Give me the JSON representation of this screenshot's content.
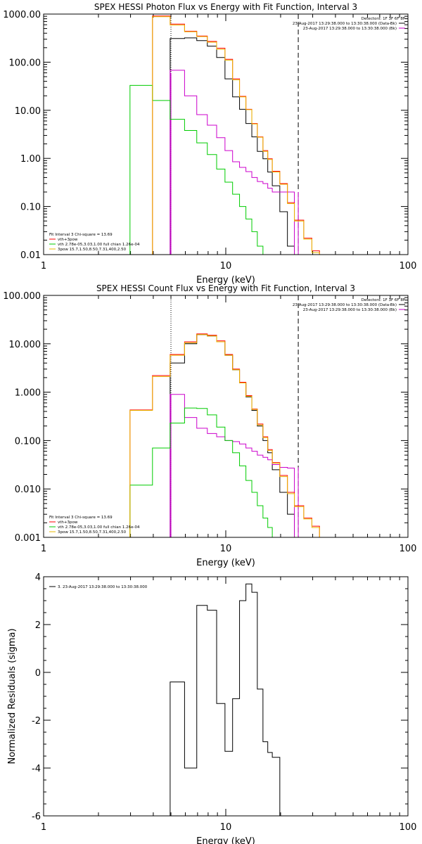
{
  "chart_data": [
    {
      "type": "line",
      "title": "SPEX HESSI Photon Flux vs Energy with Fit Function, Interval 3",
      "xlabel": "Energy (keV)",
      "ylabel": "",
      "xscale": "log",
      "yscale": "log",
      "xlim": [
        1,
        100
      ],
      "ylim": [
        0.01,
        1000
      ],
      "xticks": [
        1,
        10,
        100
      ],
      "xtick_labels": [
        "1",
        "10",
        "100"
      ],
      "yticks": [
        0.01,
        0.1,
        1,
        10,
        100,
        1000
      ],
      "ytick_labels": [
        "0.01",
        "0.10",
        "1.00",
        "10.00",
        "100.00",
        "1000.00"
      ],
      "vlines": [
        {
          "x": 5,
          "style": "dotted",
          "color": "#000000"
        },
        {
          "x": 5,
          "style": "solid",
          "color": "#cc00cc"
        },
        {
          "x": 25,
          "style": "dashed",
          "color": "#000000"
        },
        {
          "x": 25,
          "style": "solid",
          "color": "#cc00cc"
        }
      ],
      "legend_tr": {
        "lines": [
          "Detectors: 1F 3F 6F 8F",
          "23-Aug-2017 13:29:38.000 to 13:30:38.000 (Data-Bk)",
          "23-Aug-2017 13:29:38.000 to 13:30:38.000 (Bk)"
        ],
        "colors": [
          "",
          "#000000",
          "#cc00cc"
        ]
      },
      "legend_bl": {
        "lines": [
          "Fit Interval 3   Chi-square = 13.69",
          "vth+3pow",
          "vth 2.78e-05,3.03,1.00  full chian 1.26e-04",
          "3pow 15.7,1.50,8.50,7.31,400,2.50"
        ],
        "colors": [
          "",
          "#ff0000",
          "#00cc00",
          "#e8b800"
        ]
      },
      "edges": [
        2.98,
        3.96,
        4.95,
        5.94,
        6.93,
        7.92,
        8.91,
        9.9,
        10.9,
        11.9,
        12.9,
        13.9,
        14.9,
        16.0,
        17.0,
        18.0,
        19.8,
        21.8,
        23.8,
        26.8,
        29.7,
        32.7,
        35.6
      ],
      "series": [
        {
          "key": "data",
          "color": "#000000",
          "values": [
            null,
            null,
            310,
            320,
            280,
            215,
            125,
            45,
            19,
            10.5,
            5.3,
            2.8,
            1.4,
            0.98,
            0.52,
            0.27,
            0.078,
            0.015,
            null,
            null,
            null,
            null
          ]
        },
        {
          "key": "bk",
          "color": "#cc00cc",
          "values": [
            null,
            null,
            68,
            20,
            8.1,
            4.9,
            2.7,
            1.45,
            0.85,
            0.65,
            0.53,
            0.4,
            0.33,
            0.3,
            0.24,
            0.2,
            0.2,
            0.2,
            null,
            null,
            null,
            null
          ]
        },
        {
          "key": "total",
          "color": "#ff0000",
          "values": [
            null,
            910,
            620,
            440,
            350,
            270,
            195,
            115,
            45,
            19.5,
            10.5,
            5.3,
            2.8,
            1.45,
            0.98,
            0.54,
            0.3,
            0.12,
            0.052,
            0.022,
            0.012,
            null
          ]
        },
        {
          "key": "thermal",
          "color": "#00cc00",
          "values": [
            33,
            16,
            6.5,
            3.8,
            2.1,
            1.2,
            0.6,
            0.32,
            0.18,
            0.1,
            0.055,
            0.03,
            0.015,
            null,
            null,
            null,
            null,
            null,
            null,
            null,
            null,
            null
          ]
        },
        {
          "key": "powerlaw",
          "color": "#e8b800",
          "values": [
            null,
            880,
            590,
            430,
            340,
            260,
            185,
            110,
            43,
            19,
            10.3,
            5.2,
            2.75,
            1.4,
            0.95,
            0.52,
            0.29,
            0.115,
            0.05,
            0.021,
            0.011,
            null
          ]
        }
      ]
    },
    {
      "type": "line",
      "title": "SPEX HESSI Count Flux vs Energy with Fit Function, Interval 3",
      "xlabel": "Energy (keV)",
      "ylabel": "",
      "xscale": "log",
      "yscale": "log",
      "xlim": [
        1,
        100
      ],
      "ylim": [
        0.001,
        100
      ],
      "xticks": [
        1,
        10,
        100
      ],
      "xtick_labels": [
        "1",
        "10",
        "100"
      ],
      "yticks": [
        0.001,
        0.01,
        0.1,
        1,
        10,
        100
      ],
      "ytick_labels": [
        "0.001",
        "0.010",
        "0.100",
        "1.000",
        "10.000",
        "100.000"
      ],
      "vlines": [
        {
          "x": 5,
          "style": "dotted",
          "color": "#000000"
        },
        {
          "x": 5,
          "style": "solid",
          "color": "#cc00cc"
        },
        {
          "x": 25,
          "style": "dashed",
          "color": "#000000"
        },
        {
          "x": 25,
          "style": "solid",
          "color": "#cc00cc"
        }
      ],
      "legend_tr": {
        "lines": [
          "Detectors: 1F 3F 6F 8F",
          "23-Aug-2017 13:29:38.000 to 13:30:38.000 (Data-Bk)",
          "23-Aug-2017 13:29:38.000 to 13:30:38.000 (Bk)"
        ],
        "colors": [
          "",
          "#000000",
          "#cc00cc"
        ]
      },
      "legend_bl": {
        "lines": [
          "Fit Interval 3   Chi-square = 13.69",
          "vth+3pow",
          "vth 2.78e-05,3.03,1.00  full chian 1.26e-04",
          "3pow 15.7,1.50,8.50,7.31,400,2.50"
        ],
        "colors": [
          "",
          "#ff0000",
          "#00cc00",
          "#e8b800"
        ]
      },
      "edges": [
        2.98,
        3.96,
        4.95,
        5.94,
        6.93,
        7.92,
        8.91,
        9.9,
        10.9,
        11.9,
        12.9,
        13.9,
        14.9,
        16.0,
        17.0,
        18.0,
        19.8,
        21.8,
        23.8,
        26.8,
        29.7,
        32.7,
        35.6,
        38.6
      ],
      "series": [
        {
          "key": "data",
          "color": "#000000",
          "values": [
            null,
            null,
            4,
            10,
            15.5,
            14.5,
            11,
            5.8,
            2.9,
            1.55,
            0.8,
            0.42,
            0.2,
            0.1,
            0.056,
            0.025,
            0.0085,
            0.003,
            null,
            null,
            null,
            null,
            null
          ]
        },
        {
          "key": "bk",
          "color": "#cc00cc",
          "values": [
            null,
            null,
            0.9,
            0.3,
            0.18,
            0.14,
            0.12,
            0.1,
            0.095,
            0.085,
            0.07,
            0.06,
            0.05,
            0.045,
            0.04,
            0.032,
            0.028,
            0.027,
            null,
            null,
            null,
            null,
            null
          ]
        },
        {
          "key": "total",
          "color": "#ff0000",
          "values": [
            0.43,
            2.2,
            6,
            11,
            16,
            15,
            11.5,
            6,
            3,
            1.6,
            0.85,
            0.45,
            0.22,
            0.12,
            0.065,
            0.035,
            0.019,
            0.0085,
            0.0045,
            0.0025,
            0.0017,
            0.001,
            null
          ]
        },
        {
          "key": "thermal",
          "color": "#00cc00",
          "values": [
            0.012,
            0.07,
            0.23,
            0.47,
            0.46,
            0.34,
            0.19,
            0.1,
            0.056,
            0.03,
            0.015,
            0.0085,
            0.0045,
            0.0025,
            0.0016,
            0.001,
            null,
            null,
            null,
            null,
            null,
            null,
            null
          ]
        },
        {
          "key": "powerlaw",
          "color": "#e8b800",
          "values": [
            0.42,
            2.1,
            5.8,
            10.5,
            15.5,
            14.5,
            11,
            5.8,
            2.9,
            1.55,
            0.82,
            0.44,
            0.21,
            0.115,
            0.062,
            0.034,
            0.018,
            0.008,
            0.0043,
            0.0024,
            0.0016,
            0.001,
            null
          ]
        }
      ]
    },
    {
      "type": "line",
      "title": "",
      "xlabel": "Energy (keV)",
      "ylabel": "Normalized Residuals (sigma)",
      "xscale": "log",
      "yscale": "linear",
      "xlim": [
        1,
        100
      ],
      "ylim": [
        -6,
        4
      ],
      "xticks": [
        1,
        10,
        100
      ],
      "xtick_labels": [
        "1",
        "10",
        "100"
      ],
      "yticks": [
        -6,
        -4,
        -2,
        0,
        2,
        4
      ],
      "ytick_labels": [
        "-6",
        "-4",
        "-2",
        "0",
        "2",
        "4"
      ],
      "legend_tl": {
        "lines": [
          "3. 23-Aug-2017 13:29:38.000 to 13:30:38.000"
        ],
        "colors": [
          "#000000"
        ]
      },
      "edges": [
        4.95,
        5.94,
        6.93,
        7.92,
        8.91,
        9.9,
        10.9,
        11.9,
        12.9,
        13.9,
        14.9,
        16.0,
        17.0,
        18.0,
        19.8,
        21.8,
        23.8
      ],
      "series": [
        {
          "key": "residuals",
          "color": "#000000",
          "values": [
            -0.4,
            -4.0,
            2.8,
            2.6,
            -1.3,
            -3.3,
            -1.1,
            3.0,
            3.7,
            3.35,
            -0.7,
            -2.9,
            -3.35,
            -3.55,
            null,
            null
          ]
        }
      ]
    }
  ]
}
